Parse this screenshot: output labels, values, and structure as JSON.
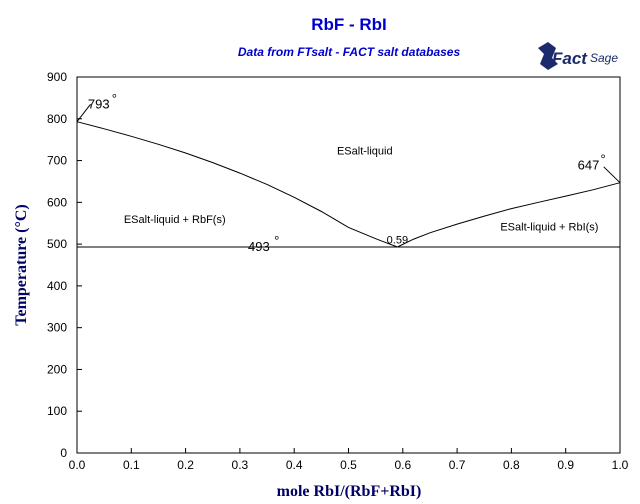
{
  "chart_data": {
    "type": "line",
    "title": "RbF - RbI",
    "subtitle": "Data from FTsalt - FACT salt databases",
    "xlabel": "mole RbI/(RbF+RbI)",
    "ylabel": "Temperature (°C)",
    "xlim": [
      0,
      1
    ],
    "ylim": [
      0,
      900
    ],
    "x_ticks": [
      "0.0",
      "0.1",
      "0.2",
      "0.3",
      "0.4",
      "0.5",
      "0.6",
      "0.7",
      "0.8",
      "0.9",
      "1.0"
    ],
    "y_ticks": [
      "0",
      "100",
      "200",
      "300",
      "400",
      "500",
      "600",
      "700",
      "800",
      "900"
    ],
    "series": [
      {
        "x": [
          0.0,
          0.05,
          0.1,
          0.15,
          0.2,
          0.25,
          0.3,
          0.35,
          0.4,
          0.45,
          0.5,
          0.55,
          0.59
        ],
        "y": [
          793,
          776,
          758,
          739,
          718,
          695,
          670,
          643,
          612,
          578,
          540,
          513,
          493
        ]
      },
      {
        "x": [
          0.59,
          0.62,
          0.65,
          0.7,
          0.75,
          0.8,
          0.85,
          0.9,
          0.95,
          1.0
        ],
        "y": [
          493,
          512,
          527,
          548,
          567,
          585,
          600,
          615,
          630,
          647
        ]
      },
      {
        "x": [
          0.0,
          1.0
        ],
        "y": [
          493,
          493
        ]
      }
    ],
    "region_labels": [
      "ESalt-liquid",
      "ESalt-liquid + RbF(s)",
      "ESalt-liquid + RbI(s)"
    ],
    "annotations": [
      "793",
      "647",
      "493",
      "0.59"
    ],
    "grid": false,
    "legend": "none"
  },
  "logo": {
    "fact": "Fact",
    "sage": "Sage"
  },
  "degree_symbol": "°"
}
